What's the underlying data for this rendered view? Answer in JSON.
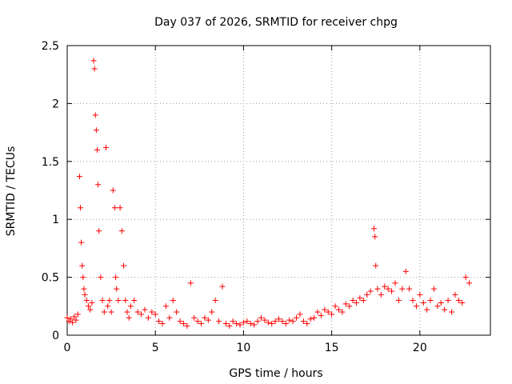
{
  "chart_data": {
    "type": "scatter",
    "title": "Day 037 of 2026, SRMTID for receiver chpg",
    "xlabel": "GPS time / hours",
    "ylabel": "SRMTID / TECUs",
    "xlim": [
      0,
      24
    ],
    "ylim": [
      0,
      2.5
    ],
    "xticks": [
      0,
      5,
      10,
      15,
      20
    ],
    "yticks": [
      0,
      0.5,
      1,
      1.5,
      2,
      2.5
    ],
    "xtick_labels": [
      "0",
      "5",
      "10",
      "15",
      "20"
    ],
    "ytick_labels": [
      "0",
      "0.5",
      "1",
      "1.5",
      "2",
      "2.5"
    ],
    "grid": true,
    "marker": "+",
    "series": [
      {
        "name": "SRMTID",
        "color": "#ff0000",
        "x": [
          0.0,
          0.1,
          0.2,
          0.3,
          0.4,
          0.5,
          0.6,
          0.7,
          0.75,
          0.8,
          0.85,
          0.9,
          0.95,
          1.0,
          1.1,
          1.2,
          1.3,
          1.4,
          1.5,
          1.55,
          1.6,
          1.65,
          1.7,
          1.75,
          1.8,
          1.9,
          2.0,
          2.1,
          2.2,
          2.3,
          2.4,
          2.5,
          2.6,
          2.7,
          2.75,
          2.8,
          2.9,
          3.0,
          3.1,
          3.2,
          3.3,
          3.4,
          3.5,
          3.6,
          3.8,
          4.0,
          4.2,
          4.4,
          4.6,
          4.8,
          5.0,
          5.2,
          5.4,
          5.6,
          5.8,
          6.0,
          6.2,
          6.4,
          6.6,
          6.8,
          7.0,
          7.2,
          7.4,
          7.6,
          7.8,
          8.0,
          8.2,
          8.4,
          8.6,
          8.8,
          9.0,
          9.2,
          9.4,
          9.6,
          9.8,
          10.0,
          10.2,
          10.4,
          10.6,
          10.8,
          11.0,
          11.2,
          11.4,
          11.6,
          11.8,
          12.0,
          12.2,
          12.4,
          12.6,
          12.8,
          13.0,
          13.2,
          13.4,
          13.6,
          13.8,
          14.0,
          14.2,
          14.4,
          14.6,
          14.8,
          15.0,
          15.2,
          15.4,
          15.6,
          15.8,
          16.0,
          16.2,
          16.4,
          16.6,
          16.8,
          17.0,
          17.2,
          17.4,
          17.45,
          17.5,
          17.6,
          17.8,
          18.0,
          18.2,
          18.4,
          18.6,
          18.8,
          19.0,
          19.2,
          19.4,
          19.6,
          19.8,
          20.0,
          20.2,
          20.4,
          20.6,
          20.8,
          21.0,
          21.2,
          21.4,
          21.6,
          21.8,
          22.0,
          22.2,
          22.4,
          22.6,
          22.8
        ],
        "y": [
          0.15,
          0.12,
          0.14,
          0.11,
          0.16,
          0.13,
          0.18,
          1.37,
          1.1,
          0.8,
          0.6,
          0.5,
          0.4,
          0.35,
          0.3,
          0.25,
          0.22,
          0.28,
          2.37,
          2.3,
          1.9,
          1.77,
          1.6,
          1.3,
          0.9,
          0.5,
          0.3,
          0.2,
          1.62,
          0.25,
          0.3,
          0.2,
          1.25,
          1.1,
          0.5,
          0.4,
          0.3,
          1.1,
          0.9,
          0.6,
          0.3,
          0.2,
          0.15,
          0.25,
          0.3,
          0.2,
          0.18,
          0.22,
          0.15,
          0.2,
          0.18,
          0.12,
          0.1,
          0.25,
          0.15,
          0.3,
          0.2,
          0.12,
          0.1,
          0.08,
          0.45,
          0.15,
          0.12,
          0.1,
          0.15,
          0.13,
          0.2,
          0.3,
          0.12,
          0.42,
          0.1,
          0.08,
          0.12,
          0.1,
          0.09,
          0.11,
          0.12,
          0.1,
          0.09,
          0.12,
          0.15,
          0.13,
          0.11,
          0.1,
          0.12,
          0.14,
          0.12,
          0.1,
          0.13,
          0.12,
          0.15,
          0.18,
          0.12,
          0.1,
          0.14,
          0.15,
          0.2,
          0.17,
          0.22,
          0.2,
          0.18,
          0.25,
          0.22,
          0.2,
          0.27,
          0.25,
          0.3,
          0.28,
          0.32,
          0.3,
          0.35,
          0.38,
          0.92,
          0.85,
          0.6,
          0.4,
          0.35,
          0.42,
          0.4,
          0.38,
          0.45,
          0.3,
          0.4,
          0.55,
          0.4,
          0.3,
          0.25,
          0.35,
          0.28,
          0.22,
          0.3,
          0.4,
          0.25,
          0.28,
          0.22,
          0.3,
          0.2,
          0.35,
          0.3,
          0.28,
          0.5,
          0.45
        ]
      }
    ]
  }
}
